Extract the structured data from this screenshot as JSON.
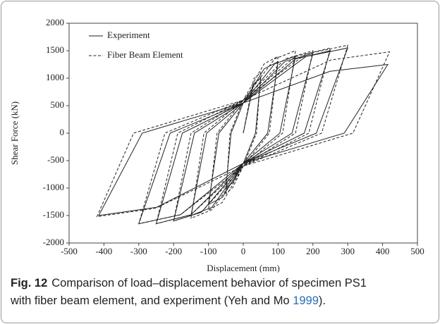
{
  "chart_data": {
    "type": "line",
    "xlabel": "Displacement (mm)",
    "ylabel": "Shear Force (kN)",
    "xlim": [
      -500,
      500
    ],
    "xticks": [
      -500,
      -400,
      -300,
      -200,
      -100,
      0,
      100,
      200,
      300,
      400,
      500
    ],
    "ylim": [
      -2000,
      2000
    ],
    "yticks": [
      -2000,
      -1500,
      -1000,
      -500,
      0,
      500,
      1000,
      1500,
      2000
    ],
    "grid": false,
    "legend": "upper left",
    "series": [
      {
        "name": "Experiment",
        "color": "#222222",
        "style": "solid",
        "x": [
          0,
          30,
          50,
          35,
          0,
          -30,
          -50,
          -35,
          0,
          60,
          100,
          70,
          0,
          -60,
          -100,
          -70,
          0,
          90,
          150,
          105,
          0,
          -90,
          -150,
          -105,
          0,
          120,
          200,
          140,
          0,
          -120,
          -200,
          -140,
          0,
          150,
          250,
          175,
          0,
          -150,
          -250,
          -175,
          0,
          180,
          300,
          210,
          0,
          -180,
          -300,
          -210,
          0,
          249,
          415,
          290,
          0,
          -249,
          -415,
          -290,
          0
        ],
        "values": [
          0,
          900,
          1000,
          0,
          -550,
          -900,
          -1000,
          0,
          550,
          1170,
          1300,
          0,
          -550,
          -1170,
          -1300,
          0,
          550,
          1260,
          1400,
          0,
          -550,
          -1350,
          -1500,
          0,
          550,
          1305,
          1450,
          0,
          -550,
          -1440,
          -1600,
          0,
          550,
          1350,
          1500,
          0,
          -550,
          -1485,
          -1650,
          0,
          550,
          1395,
          1550,
          0,
          -550,
          -1485,
          -1650,
          0,
          550,
          1125,
          1250,
          0,
          -550,
          -1350,
          -1500,
          0,
          550
        ]
      },
      {
        "name": "Fiber Beam Element",
        "color": "#222222",
        "style": "dashed",
        "x": [
          0,
          30,
          50,
          38,
          0,
          -30,
          -50,
          -38,
          0,
          60,
          100,
          75,
          0,
          -60,
          -100,
          -75,
          0,
          90,
          150,
          113,
          0,
          -90,
          -150,
          -113,
          0,
          120,
          200,
          150,
          0,
          -120,
          -200,
          -150,
          0,
          150,
          250,
          188,
          0,
          -150,
          -250,
          -188,
          0,
          180,
          300,
          225,
          0,
          -180,
          -300,
          -225,
          0,
          252,
          420,
          315,
          0,
          -252,
          -420,
          -315,
          0
        ],
        "values": [
          0,
          990,
          1100,
          0,
          -600,
          -990,
          -1100,
          0,
          600,
          1260,
          1400,
          0,
          -600,
          -1260,
          -1400,
          0,
          600,
          1350,
          1500,
          0,
          -600,
          -1395,
          -1550,
          0,
          600,
          1350,
          1500,
          0,
          -600,
          -1440,
          -1600,
          0,
          600,
          1395,
          1550,
          0,
          -600,
          -1485,
          -1650,
          0,
          600,
          1440,
          1600,
          0,
          -600,
          -1485,
          -1650,
          0,
          600,
          1332,
          1480,
          0,
          -600,
          -1368,
          -1520,
          0,
          600
        ]
      }
    ]
  },
  "caption": {
    "label": "Fig. 12",
    "line1": "Comparison of load–displacement behavior of specimen PS1",
    "line2": "with fiber beam element, and experiment (Yeh and Mo ",
    "year": "1999",
    "end": ")."
  }
}
